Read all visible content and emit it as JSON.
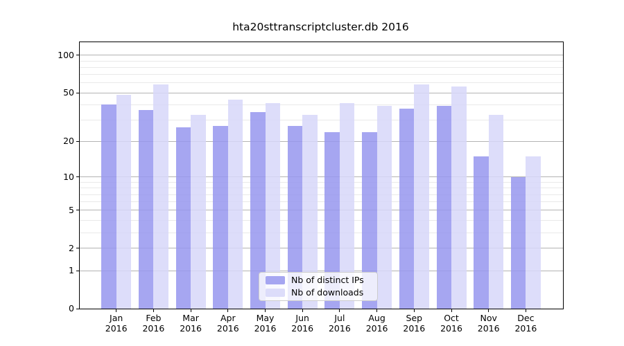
{
  "title": "hta20sttranscriptcluster.db 2016",
  "chart_data": {
    "type": "bar",
    "categories": [
      "Jan",
      "Feb",
      "Mar",
      "Apr",
      "May",
      "Jun",
      "Jul",
      "Aug",
      "Sep",
      "Oct",
      "Nov",
      "Dec"
    ],
    "x_year": "2016",
    "series": [
      {
        "name": "Nb of distinct IPs",
        "color": "rgba(150,150,238,0.85)",
        "values": [
          40,
          36,
          26,
          27,
          35,
          27,
          24,
          24,
          37,
          39,
          15,
          10
        ]
      },
      {
        "name": "Nb of downloads",
        "color": "rgba(215,215,249,0.85)",
        "values": [
          48,
          58,
          33,
          44,
          41,
          33,
          41,
          39,
          58,
          56,
          33,
          15
        ]
      }
    ],
    "yscale": "log1p",
    "ylim": [
      0,
      127
    ],
    "yticks": [
      0,
      1,
      2,
      5,
      10,
      20,
      50,
      100
    ],
    "minor_gridlines": [
      3,
      4,
      6,
      7,
      8,
      9,
      30,
      40,
      60,
      70,
      80,
      90
    ],
    "grid": true,
    "grid_major_color": "#b3b3b3",
    "grid_minor_color": "#e9e9e9",
    "legend_position": "lower center"
  }
}
